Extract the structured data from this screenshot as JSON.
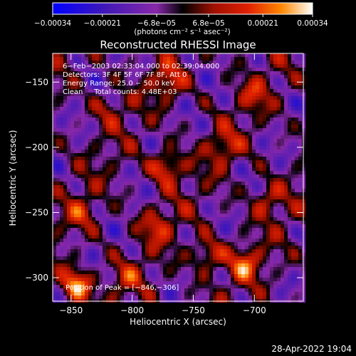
{
  "chart_data": {
    "type": "heatmap",
    "title": "Reconstructed RHESSI Image",
    "xlabel": "Heliocentric X (arcsec)",
    "ylabel": "Heliocentric Y (arcsec)",
    "xlim": [
      -865,
      -660
    ],
    "ylim": [
      -318,
      -128
    ],
    "x_ticks": [
      -850,
      -800,
      -750,
      -700
    ],
    "y_ticks": [
      -300,
      -250,
      -200,
      -150
    ],
    "x_tick_labels": [
      "−850",
      "−800",
      "−750",
      "−700"
    ],
    "y_tick_labels": [
      "−300",
      "−250",
      "−200",
      "−150"
    ],
    "colorbar": {
      "range": [
        -0.00034,
        0.00034
      ],
      "ticks": [
        -0.00034,
        -0.00021,
        -6.8e-05,
        6.8e-05,
        0.00021,
        0.00034
      ],
      "tick_labels": [
        "−0.00034",
        "−0.00021",
        "−6.8e−05",
        "6.8e−05",
        "0.00021",
        "0.00034"
      ],
      "unit_label": "(photons cm⁻² s⁻¹ asec⁻²)",
      "colormap": [
        "#0000ff",
        "#4018b8",
        "#8828a8",
        "#000000",
        "#a01000",
        "#e02000",
        "#ff8800",
        "#ffffff"
      ]
    },
    "annotations": [
      "6−Feb−2003 02:33:04.000 to 02:39:04.000",
      "Detectors: 3F 4F 5F 6F 7F 8F, Att 0",
      "Energy Range: 25.0 − 50.0 keV",
      "Clean     Total counts: 4.48E+03",
      "Position of Peak = [−846,−306]"
    ],
    "peak": [
      -846,
      -306
    ],
    "sources": [
      {
        "x": -846,
        "y": -306,
        "value": 0.00034
      },
      {
        "x": -772,
        "y": -215,
        "value": 0.00026
      },
      {
        "x": -738,
        "y": -283,
        "value": 0.00022
      },
      {
        "x": -708,
        "y": -290,
        "value": 0.00021
      },
      {
        "x": -770,
        "y": -150,
        "value": 0.00018
      },
      {
        "x": -780,
        "y": -260,
        "value": 0.00017
      },
      {
        "x": -725,
        "y": -200,
        "value": 0.00016
      },
      {
        "x": -690,
        "y": -240,
        "value": 0.00017
      },
      {
        "x": -840,
        "y": -250,
        "value": 0.00014
      },
      {
        "x": -820,
        "y": -170,
        "value": 0.00012
      },
      {
        "x": -700,
        "y": -160,
        "value": 0.00013
      },
      {
        "x": -805,
        "y": -300,
        "value": 0.00012
      }
    ],
    "grid": false,
    "legend": "none"
  },
  "timestamp": "28-Apr-2022 19:04"
}
